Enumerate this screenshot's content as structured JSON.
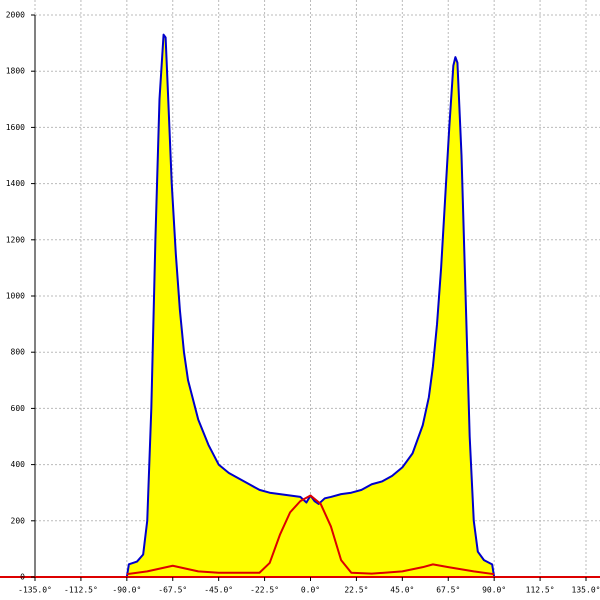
{
  "chart_data": {
    "type": "line",
    "xlim": [
      -135,
      135
    ],
    "ylim": [
      0,
      2000
    ],
    "xticks": [
      {
        "value": -135,
        "label": "-135.0°"
      },
      {
        "value": -112.5,
        "label": "-112.5°"
      },
      {
        "value": -90,
        "label": "-90.0°"
      },
      {
        "value": -67.5,
        "label": "-67.5°"
      },
      {
        "value": -45,
        "label": "-45.0°"
      },
      {
        "value": -22.5,
        "label": "-22.5°"
      },
      {
        "value": 0,
        "label": "0.0°"
      },
      {
        "value": 22.5,
        "label": "22.5°"
      },
      {
        "value": 45,
        "label": "45.0°"
      },
      {
        "value": 67.5,
        "label": "67.5°"
      },
      {
        "value": 90,
        "label": "90.0°"
      },
      {
        "value": 112.5,
        "label": "112.5°"
      },
      {
        "value": 135,
        "label": "135.0°"
      }
    ],
    "yticks": [
      0,
      200,
      400,
      600,
      800,
      1000,
      1200,
      1400,
      1600,
      1800,
      2000
    ],
    "grid": true,
    "series": [
      {
        "color": "#0000cc",
        "fill": "#ffff00",
        "x": [
          -90,
          -89,
          -85,
          -82,
          -80,
          -78,
          -76,
          -74,
          -72,
          -71,
          -70,
          -68,
          -66,
          -64,
          -62,
          -60,
          -55,
          -50,
          -45,
          -40,
          -35,
          -30,
          -25,
          -20,
          -15,
          -10,
          -5,
          -2,
          0,
          2,
          4,
          7,
          10,
          15,
          20,
          25,
          30,
          35,
          40,
          45,
          50,
          55,
          58,
          60,
          62,
          64,
          66,
          68,
          70,
          71,
          72,
          74,
          76,
          78,
          80,
          82,
          85,
          89,
          90
        ],
        "values": [
          0,
          45,
          55,
          80,
          200,
          600,
          1200,
          1700,
          1930,
          1920,
          1750,
          1400,
          1150,
          950,
          800,
          700,
          560,
          470,
          400,
          370,
          350,
          330,
          310,
          300,
          295,
          290,
          285,
          265,
          290,
          270,
          260,
          280,
          285,
          295,
          300,
          310,
          330,
          340,
          360,
          390,
          440,
          540,
          640,
          750,
          900,
          1100,
          1350,
          1600,
          1820,
          1850,
          1830,
          1500,
          1000,
          500,
          200,
          90,
          60,
          45,
          0
        ]
      },
      {
        "color": "#dd0000",
        "x": [
          -90,
          -80,
          -67.5,
          -55,
          -45,
          -25,
          -20,
          -15,
          -10,
          -5,
          0,
          5,
          10,
          15,
          20,
          30,
          45,
          55,
          60,
          67.5,
          80,
          90
        ],
        "values": [
          10,
          20,
          40,
          20,
          15,
          15,
          50,
          150,
          230,
          270,
          290,
          260,
          180,
          60,
          15,
          12,
          20,
          35,
          45,
          35,
          20,
          10
        ]
      }
    ]
  }
}
